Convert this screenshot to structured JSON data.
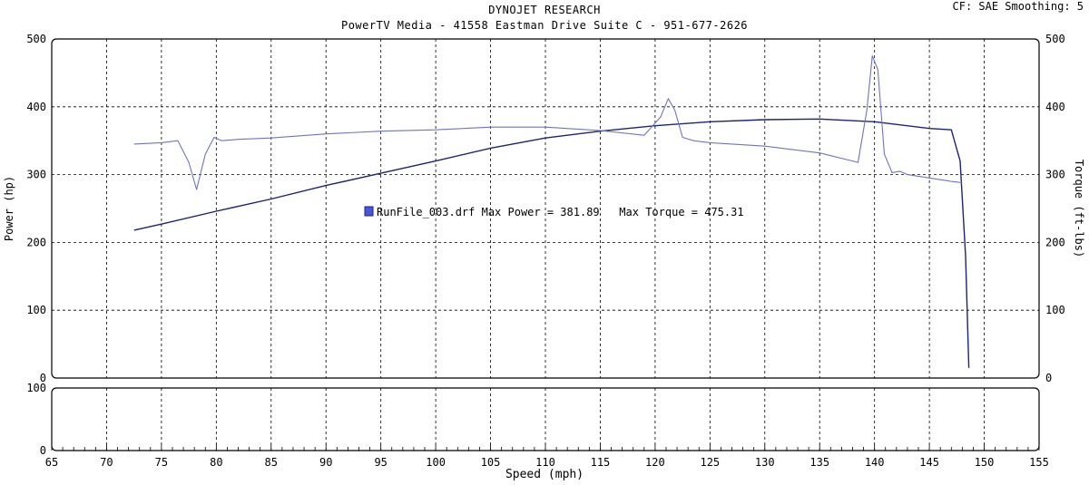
{
  "header": {
    "title": "DYNOJET RESEARCH",
    "subtitle": "PowerTV Media - 41558 Eastman Drive Suite C - 951-677-2626",
    "settings": "CF: SAE  Smoothing: 5"
  },
  "colors": {
    "power": "#1a237e",
    "torque": "#6b74c9",
    "grid": "#000000",
    "legend_box": "#4a56d8"
  },
  "chart_data": {
    "type": "line",
    "xlabel": "Speed (mph)",
    "ylabel_left": "Power (hp)",
    "ylabel_right": "Torque (ft-lbs)",
    "xlim": [
      65,
      155
    ],
    "ylim_left": [
      0,
      500
    ],
    "ylim_right": [
      0,
      500
    ],
    "ylim_lower": [
      0,
      100
    ],
    "x_ticks": [
      "65",
      "70",
      "75",
      "80",
      "85",
      "90",
      "95",
      "100",
      "105",
      "110",
      "115",
      "120",
      "125",
      "130",
      "135",
      "140",
      "145",
      "150",
      "155"
    ],
    "y_ticks_left": [
      "500",
      "400",
      "300",
      "200",
      "100",
      "0"
    ],
    "y_ticks_right": [
      "500",
      "400",
      "300",
      "200",
      "100",
      "0"
    ],
    "lower_ticks": [
      "100",
      "0"
    ],
    "grid": true,
    "legend": {
      "text": "RunFile_003.drf Max Power = 381.89   Max Torque = 475.31",
      "placement": "center-left"
    },
    "series": [
      {
        "name": "Power",
        "axis": "left",
        "x": [
          72.5,
          75,
          80,
          85,
          90,
          95,
          100,
          105,
          110,
          115,
          120,
          125,
          130,
          135,
          140,
          145,
          147,
          147.8,
          148.3,
          148.6
        ],
        "y": [
          218,
          227,
          246,
          264,
          284,
          302,
          320,
          339,
          354,
          364,
          372,
          378,
          381,
          382,
          378,
          368,
          366,
          320,
          180,
          15
        ]
      },
      {
        "name": "Torque",
        "axis": "right",
        "x": [
          72.5,
          75,
          76.5,
          77.5,
          78.2,
          79,
          79.8,
          80.5,
          82,
          85,
          90,
          95,
          100,
          105,
          110,
          115,
          119,
          120.5,
          121.2,
          121.8,
          122.5,
          123.5,
          125,
          130,
          135,
          138.5,
          139.3,
          139.8,
          140.3,
          140.9,
          141.6,
          142.3,
          143,
          145,
          147,
          148
        ],
        "y": [
          345,
          347,
          350,
          318,
          278,
          330,
          355,
          350,
          352,
          354,
          360,
          364,
          366,
          370,
          370,
          365,
          358,
          385,
          412,
          395,
          355,
          350,
          347,
          342,
          332,
          318,
          395,
          475,
          455,
          330,
          303,
          305,
          300,
          295,
          290,
          288
        ]
      }
    ]
  }
}
